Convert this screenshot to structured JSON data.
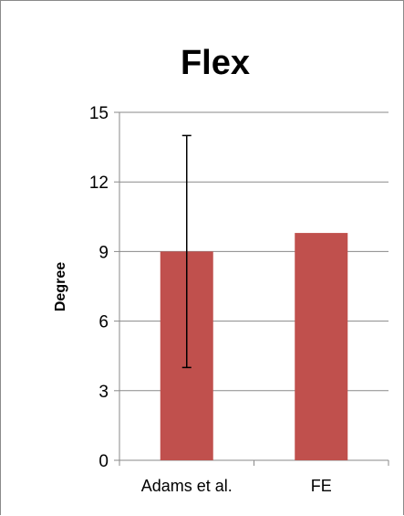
{
  "chart_data": {
    "type": "bar",
    "title": "Flex",
    "xlabel": "",
    "ylabel": "Degree",
    "categories": [
      "Adams et al.",
      "FE"
    ],
    "series": [
      {
        "values": [
          9.0,
          9.8
        ],
        "error": [
          5.0,
          null
        ],
        "color": "#C0504D"
      }
    ],
    "ylim": [
      0,
      15
    ],
    "yticks": [
      0,
      3,
      6,
      9,
      12,
      15
    ],
    "grid": true,
    "legend": "none"
  }
}
